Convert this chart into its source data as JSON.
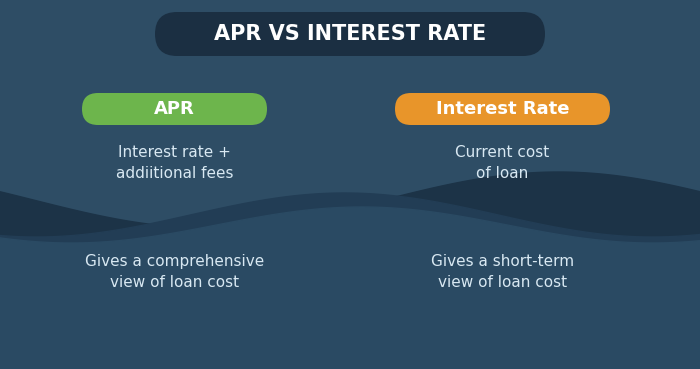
{
  "title": "APR VS INTEREST RATE",
  "title_bg_color": "#1b2f42",
  "title_text_color": "#ffffff",
  "bg_color": "#2e4d65",
  "left_label": "APR",
  "left_label_bg": "#6db54c",
  "right_label": "Interest Rate",
  "right_label_bg": "#e8952a",
  "label_text_color": "#ffffff",
  "left_point1": "Interest rate +\naddiitional fees",
  "left_point2": "Gives a comprehensive\nview of loan cost",
  "right_point1": "Current cost\nof loan",
  "right_point2": "Gives a short-term\nview of loan cost",
  "body_text_color": "#d8e8f2",
  "figsize": [
    7.0,
    3.69
  ],
  "dpi": 100
}
